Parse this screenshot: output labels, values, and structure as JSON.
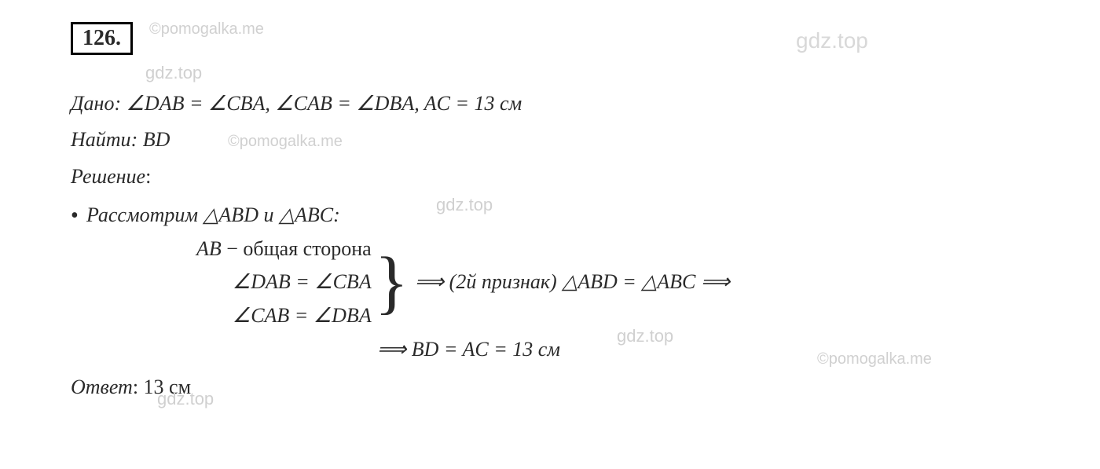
{
  "watermarks": {
    "pomogalka": "©pomogalka.me",
    "gdztop": "gdz.top"
  },
  "problem": {
    "number": "126.",
    "given_label": "Дано",
    "given_text": ": ∠DAB  =  ∠CBA, ∠CAB  =  ∠DBA,  AC  =  13 см",
    "find_label": "Найти",
    "find_text": ": BD",
    "solution_label": "Решение",
    "solution_colon": ":",
    "consider": "Рассмотрим △ABD и △ABC:",
    "brace": {
      "row1_math": "AB",
      "row1_text": " − общая сторона",
      "row2": "∠DAB  =  ∠CBA",
      "row3": "∠CAB  =  ∠DBA"
    },
    "implies1": "⟹ (2й признак) △ABD = △ABC ⟹",
    "implies2": "⟹ BD = AC = 13 см",
    "answer_label": "Ответ",
    "answer_text": ": 13 см"
  },
  "colors": {
    "text": "#2a2a2a",
    "watermark": "#d0d0d0",
    "background": "#ffffff",
    "border": "#000000"
  },
  "typography": {
    "base_font": "Cambria Math, Times New Roman, serif",
    "base_size": 26,
    "number_size": 28,
    "watermark_size": 20
  }
}
